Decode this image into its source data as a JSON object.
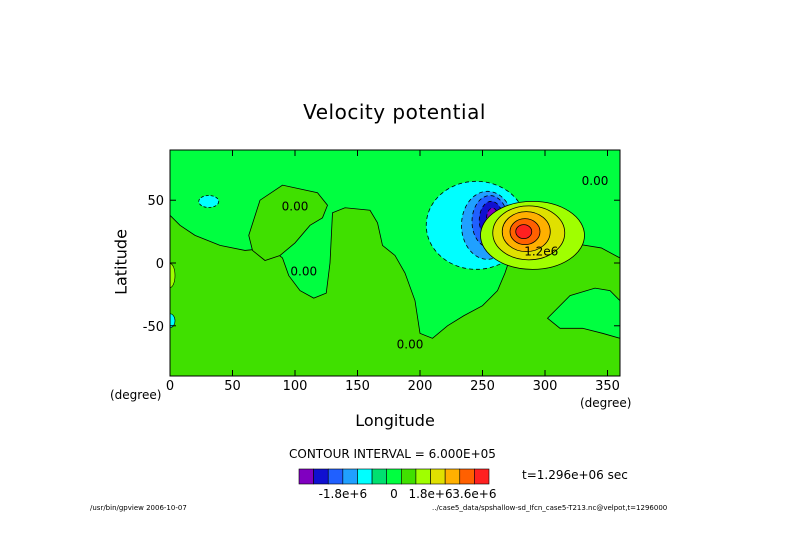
{
  "chart_data": {
    "type": "contour",
    "title": "Velocity potential",
    "xlabel": "Longitude",
    "ylabel": "Latitude",
    "x_unit": "(degree)",
    "y_unit": "(degree)",
    "xlim": [
      0,
      360
    ],
    "ylim": [
      -90,
      90
    ],
    "x_ticks": [
      0,
      50,
      100,
      150,
      200,
      250,
      300,
      350
    ],
    "y_ticks": [
      -50,
      0,
      50
    ],
    "contour_interval_label": "CONTOUR INTERVAL = 6.000E+05",
    "time_label": "t=1.296e+06 sec",
    "contour_labels": [
      {
        "text": "0.00",
        "lon": 100,
        "lat": 42
      },
      {
        "text": "0.00",
        "lon": 107,
        "lat": -10
      },
      {
        "text": "0.00",
        "lon": 192,
        "lat": -68
      },
      {
        "text": "0.00",
        "lon": 340,
        "lat": 62
      },
      {
        "text": "1.2e6",
        "lon": 297,
        "lat": 6
      }
    ],
    "features": [
      {
        "kind": "minimum",
        "lon": 257,
        "lat": 35,
        "level": "-3.6e6"
      },
      {
        "kind": "maximum",
        "lon": 283,
        "lat": 25,
        "level": "3.6e6"
      }
    ],
    "colorbar": {
      "colors": [
        "#8000c0",
        "#1010d0",
        "#2060ff",
        "#20a0ff",
        "#00ffff",
        "#00e070",
        "#00ff40",
        "#40e000",
        "#a0ff00",
        "#e0e000",
        "#ffb000",
        "#ff6000",
        "#ff2020"
      ],
      "tick_labels": [
        "-1.8e+6",
        "0",
        "1.8e+6",
        "3.6e+6"
      ]
    }
  },
  "footer": {
    "left": "/usr/bin/gpview  2006-10-07",
    "right": "../case5_data/spshallow-sd_Ifcn_case5-T213.nc@velpot,t=1296000"
  }
}
